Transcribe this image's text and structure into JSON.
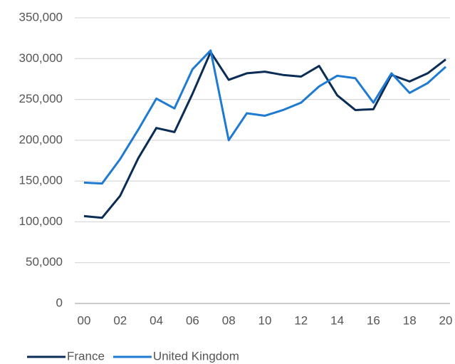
{
  "chart_data": {
    "type": "line",
    "categories": [
      "00",
      null,
      "02",
      null,
      "04",
      null,
      "06",
      null,
      "08",
      null,
      "10",
      null,
      "12",
      null,
      "14",
      null,
      "16",
      null,
      "18",
      null,
      "20"
    ],
    "series": [
      {
        "name": "France",
        "color": "#0b2d55",
        "values": [
          107000,
          105000,
          132000,
          178000,
          215000,
          210000,
          257000,
          308000,
          274000,
          282000,
          284000,
          280000,
          278000,
          291000,
          255000,
          237000,
          238000,
          280000,
          272000,
          282000,
          299000
        ]
      },
      {
        "name": "United Kingdom",
        "color": "#1f7ad1",
        "values": [
          148000,
          147000,
          177000,
          213000,
          251000,
          239000,
          287000,
          310000,
          200000,
          233000,
          230000,
          237000,
          246000,
          266000,
          279000,
          276000,
          246000,
          282000,
          258000,
          270000,
          290000
        ]
      }
    ],
    "ylim": [
      0,
      350000
    ],
    "yticks": [
      0,
      {
        "value": 50000,
        "label": "50,000"
      },
      {
        "value": 100000,
        "label": "100,000"
      },
      {
        "value": 150000,
        "label": "150,000"
      },
      {
        "value": 200000,
        "label": "200,000"
      },
      {
        "value": 250000,
        "label": "250,000"
      },
      {
        "value": 300000,
        "label": "300,000"
      },
      {
        "value": 350000,
        "label": "350,000"
      }
    ],
    "grid": true,
    "legend": "bottom"
  }
}
